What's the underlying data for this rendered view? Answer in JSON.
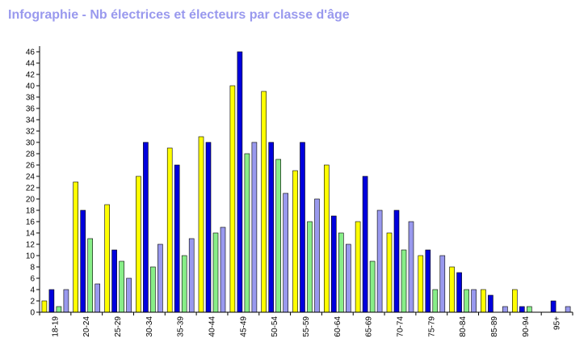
{
  "title": "Infographie - Nb électrices et électeurs par classe d'âge",
  "chart_data": {
    "type": "bar",
    "title": "Infographie - Nb électrices et électeurs par classe d'âge",
    "xlabel": "",
    "ylabel": "",
    "ylim": [
      0,
      47
    ],
    "yticks": [
      0,
      2,
      4,
      6,
      8,
      10,
      12,
      14,
      16,
      18,
      20,
      22,
      24,
      26,
      28,
      30,
      32,
      34,
      36,
      38,
      40,
      42,
      44,
      46
    ],
    "grid": false,
    "legend": "none",
    "categories": [
      "18-19",
      "20-24",
      "25-29",
      "30-34",
      "35-39",
      "40-44",
      "45-49",
      "50-54",
      "55-59",
      "60-64",
      "65-69",
      "70-74",
      "75-79",
      "80-84",
      "85-89",
      "90-94",
      "95+"
    ],
    "series": [
      {
        "color": "#ffff00",
        "values": [
          2,
          23,
          19,
          24,
          29,
          31,
          40,
          39,
          25,
          26,
          16,
          14,
          10,
          8,
          4,
          4,
          0
        ]
      },
      {
        "color": "#0000dd",
        "values": [
          4,
          18,
          11,
          30,
          26,
          30,
          46,
          30,
          30,
          17,
          24,
          18,
          11,
          7,
          3,
          1,
          2
        ]
      },
      {
        "color": "#88ee88",
        "values": [
          1,
          13,
          9,
          8,
          10,
          14,
          28,
          27,
          16,
          14,
          9,
          11,
          4,
          4,
          0,
          1,
          0
        ]
      },
      {
        "color": "#9999ee",
        "values": [
          4,
          5,
          6,
          12,
          13,
          15,
          30,
          21,
          20,
          12,
          18,
          16,
          10,
          4,
          1,
          0,
          1
        ]
      }
    ]
  }
}
